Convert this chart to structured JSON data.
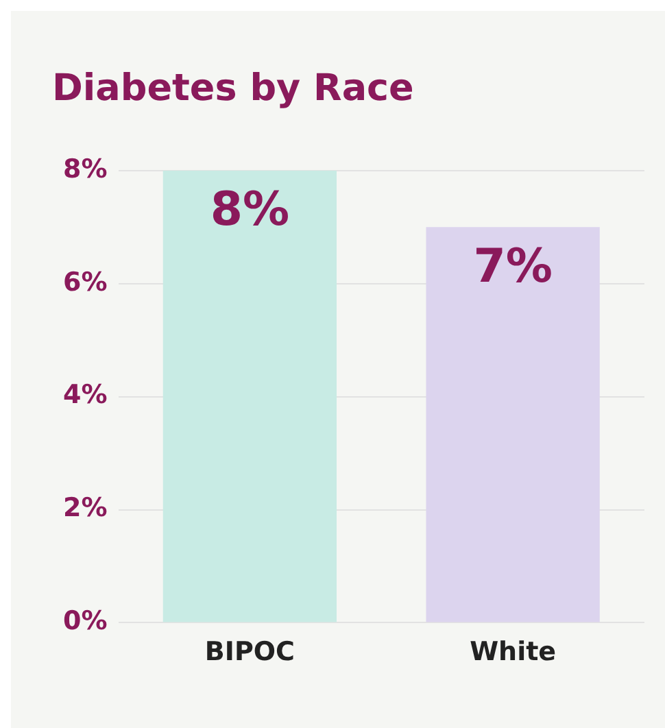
{
  "chart_data": {
    "type": "bar",
    "title": "Diabetes by Race",
    "categories": [
      "BIPOC",
      "White"
    ],
    "values": [
      8,
      7
    ],
    "colors": [
      "#c8ebe4",
      "#dcd4ee"
    ],
    "value_labels": [
      "8%",
      "7%"
    ],
    "ylim": [
      0,
      8
    ],
    "yticks": [
      {
        "value": 0,
        "label": "0%"
      },
      {
        "value": 2,
        "label": "2%"
      },
      {
        "value": 4,
        "label": "4%"
      },
      {
        "value": 6,
        "label": "6%"
      },
      {
        "value": 8,
        "label": "8%"
      }
    ],
    "grid": "y",
    "legend": false
  }
}
